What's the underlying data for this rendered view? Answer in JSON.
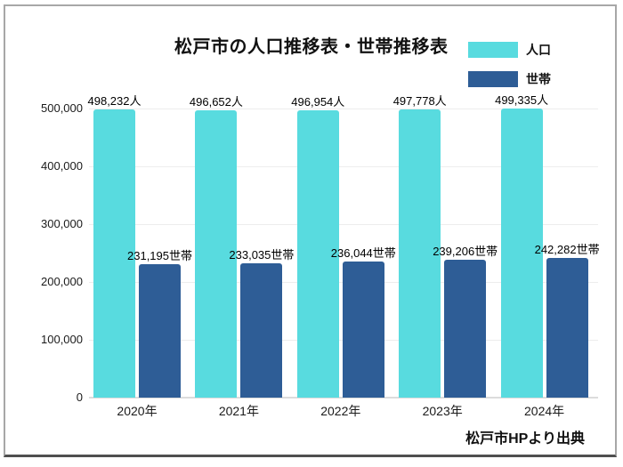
{
  "chart_data": {
    "type": "bar",
    "title": "松戸市の人口推移表・世帯推移表",
    "source": "松戸市HPより出典",
    "categories": [
      "2020年",
      "2021年",
      "2022年",
      "2023年",
      "2024年"
    ],
    "series": [
      {
        "name": "人口",
        "color": "#58DBDF",
        "values": [
          498232,
          496652,
          496954,
          497778,
          499335
        ],
        "labels": [
          "498,232人",
          "496,652人",
          "496,954人",
          "497,778人",
          "499,335人"
        ]
      },
      {
        "name": "世帯",
        "color": "#2E5D96",
        "values": [
          231195,
          233035,
          236044,
          239206,
          242282
        ],
        "labels": [
          "231,195世帯",
          "233,035世帯",
          "236,044世帯",
          "239,206世帯",
          "242,282世帯"
        ]
      }
    ],
    "ylim": [
      0,
      500000
    ],
    "yticks": [
      {
        "value": 0,
        "label": "0"
      },
      {
        "value": 100000,
        "label": "100,000"
      },
      {
        "value": 200000,
        "label": "200,000"
      },
      {
        "value": 300000,
        "label": "300,000"
      },
      {
        "value": 400000,
        "label": "400,000"
      },
      {
        "value": 500000,
        "label": "500,000"
      }
    ],
    "grid": true,
    "legend_position": "top-right"
  }
}
